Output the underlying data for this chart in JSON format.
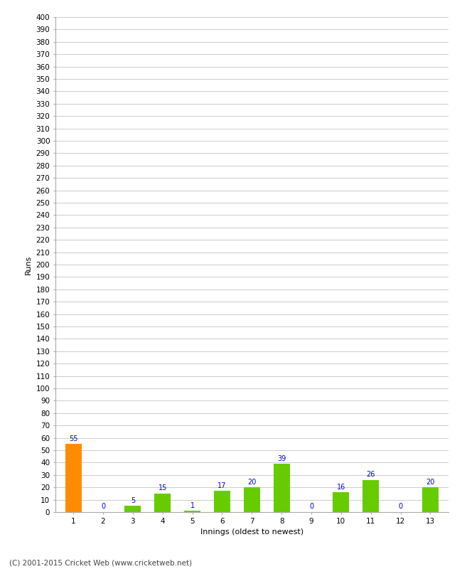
{
  "categories": [
    "1",
    "2",
    "3",
    "4",
    "5",
    "6",
    "7",
    "8",
    "9",
    "10",
    "11",
    "12",
    "13"
  ],
  "values": [
    55,
    0,
    5,
    15,
    1,
    17,
    20,
    39,
    0,
    16,
    26,
    0,
    20
  ],
  "bar_colors": [
    "#ff8c00",
    "#66cc00",
    "#66cc00",
    "#66cc00",
    "#66cc00",
    "#66cc00",
    "#66cc00",
    "#66cc00",
    "#66cc00",
    "#66cc00",
    "#66cc00",
    "#66cc00",
    "#66cc00"
  ],
  "xlabel": "Innings (oldest to newest)",
  "ylabel": "Runs",
  "ylim": [
    0,
    400
  ],
  "yticks": [
    0,
    10,
    20,
    30,
    40,
    50,
    60,
    70,
    80,
    90,
    100,
    110,
    120,
    130,
    140,
    150,
    160,
    170,
    180,
    190,
    200,
    210,
    220,
    230,
    240,
    250,
    260,
    270,
    280,
    290,
    300,
    310,
    320,
    330,
    340,
    350,
    360,
    370,
    380,
    390,
    400
  ],
  "value_label_color": "#0000cc",
  "value_label_fontsize": 7,
  "axis_label_fontsize": 8,
  "tick_fontsize": 7.5,
  "footer": "(C) 2001-2015 Cricket Web (www.cricketweb.net)",
  "footer_fontsize": 7.5,
  "background_color": "#ffffff",
  "grid_color": "#cccccc",
  "figwidth": 6.5,
  "figheight": 8.0,
  "dpi": 100
}
